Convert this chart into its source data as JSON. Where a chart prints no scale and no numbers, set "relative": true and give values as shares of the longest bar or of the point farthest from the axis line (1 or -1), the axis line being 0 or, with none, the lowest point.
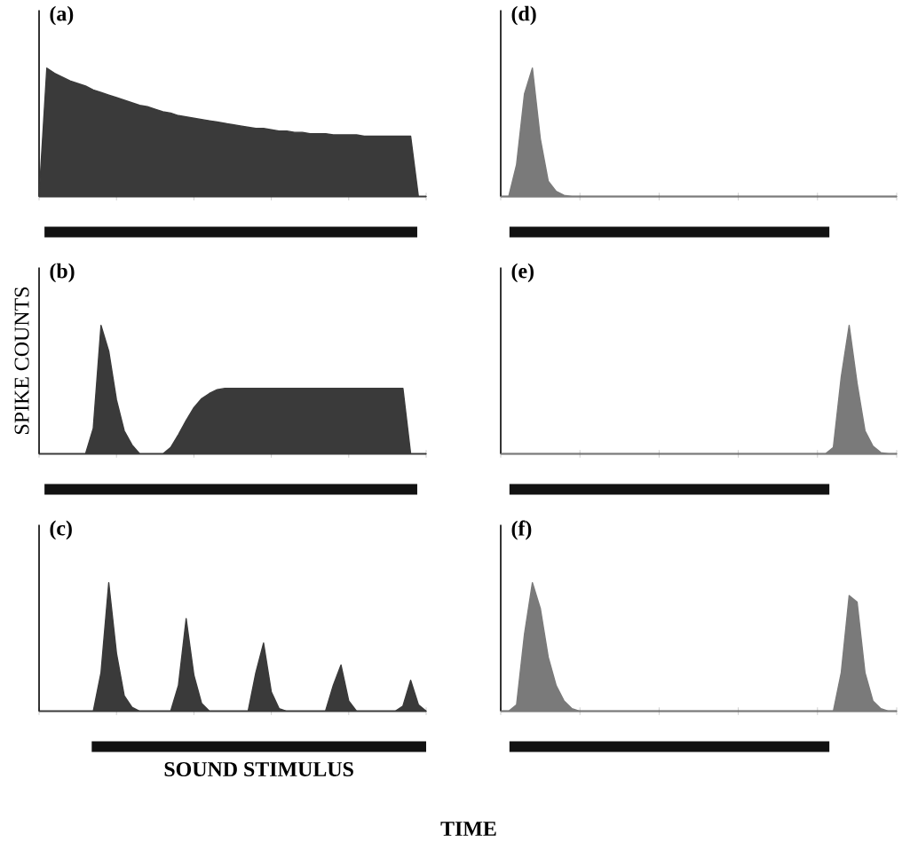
{
  "chart_data": [
    {
      "type": "area",
      "title": "(a)",
      "relative": true,
      "color": "#3a3a3a",
      "categories": [
        null,
        null,
        null,
        null,
        null,
        null,
        null,
        null,
        null,
        null,
        null,
        null,
        null,
        null,
        null,
        null,
        null,
        null,
        null,
        null,
        null,
        null,
        null,
        null,
        null,
        null,
        null,
        null,
        null,
        null,
        null,
        null,
        null,
        null,
        null,
        null,
        null,
        null,
        null,
        null,
        null,
        null,
        null,
        null,
        null,
        null,
        null,
        null,
        null,
        null,
        null
      ],
      "values": [
        0,
        1,
        0.96,
        0.93,
        0.9,
        0.88,
        0.86,
        0.83,
        0.81,
        0.79,
        0.77,
        0.75,
        0.73,
        0.71,
        0.7,
        0.68,
        0.66,
        0.65,
        0.63,
        0.62,
        0.61,
        0.6,
        0.59,
        0.58,
        0.57,
        0.56,
        0.55,
        0.54,
        0.53,
        0.53,
        0.52,
        0.51,
        0.51,
        0.5,
        0.5,
        0.49,
        0.49,
        0.49,
        0.48,
        0.48,
        0.48,
        0.48,
        0.47,
        0.47,
        0.47,
        0.47,
        0.47,
        0.47,
        0.47,
        0,
        0
      ]
    },
    {
      "type": "area",
      "title": "(d)",
      "relative": true,
      "color": "#7a7a7a",
      "categories": [
        null,
        null,
        null,
        null,
        null,
        null,
        null,
        null,
        null,
        null,
        null,
        null,
        null,
        null,
        null,
        null,
        null,
        null,
        null,
        null,
        null,
        null,
        null,
        null,
        null,
        null,
        null,
        null,
        null,
        null,
        null,
        null,
        null,
        null,
        null,
        null,
        null,
        null,
        null,
        null,
        null,
        null,
        null,
        null,
        null,
        null,
        null,
        null,
        null,
        null,
        null
      ],
      "values": [
        0,
        0,
        0.25,
        0.8,
        1,
        0.45,
        0.12,
        0.04,
        0.01,
        0,
        0,
        0,
        0,
        0,
        0,
        0,
        0,
        0,
        0,
        0,
        0,
        0,
        0,
        0,
        0,
        0,
        0,
        0,
        0,
        0,
        0,
        0,
        0,
        0,
        0,
        0,
        0,
        0,
        0,
        0,
        0,
        0,
        0,
        0,
        0,
        0,
        0,
        0,
        0,
        0,
        0
      ]
    },
    {
      "type": "area",
      "title": "(b)",
      "ylabel": "SPIKE COUNTS",
      "relative": true,
      "color": "#3a3a3a",
      "categories": [
        null,
        null,
        null,
        null,
        null,
        null,
        null,
        null,
        null,
        null,
        null,
        null,
        null,
        null,
        null,
        null,
        null,
        null,
        null,
        null,
        null,
        null,
        null,
        null,
        null,
        null,
        null,
        null,
        null,
        null,
        null,
        null,
        null,
        null,
        null,
        null,
        null,
        null,
        null,
        null,
        null,
        null,
        null,
        null,
        null,
        null,
        null,
        null,
        null,
        null,
        null
      ],
      "values": [
        0,
        0,
        0,
        0,
        0,
        0,
        0,
        0.2,
        1,
        0.8,
        0.42,
        0.18,
        0.07,
        0,
        0,
        0,
        0,
        0.05,
        0.15,
        0.26,
        0.36,
        0.43,
        0.47,
        0.5,
        0.51,
        0.51,
        0.51,
        0.51,
        0.51,
        0.51,
        0.51,
        0.51,
        0.51,
        0.51,
        0.51,
        0.51,
        0.51,
        0.51,
        0.51,
        0.51,
        0.51,
        0.51,
        0.51,
        0.51,
        0.51,
        0.51,
        0.51,
        0.51,
        0,
        0,
        0
      ]
    },
    {
      "type": "area",
      "title": "(e)",
      "relative": true,
      "color": "#7a7a7a",
      "categories": [
        null,
        null,
        null,
        null,
        null,
        null,
        null,
        null,
        null,
        null,
        null,
        null,
        null,
        null,
        null,
        null,
        null,
        null,
        null,
        null,
        null,
        null,
        null,
        null,
        null,
        null,
        null,
        null,
        null,
        null,
        null,
        null,
        null,
        null,
        null,
        null,
        null,
        null,
        null,
        null,
        null,
        null,
        null,
        null,
        null,
        null,
        null,
        null,
        null,
        null,
        null
      ],
      "values": [
        0,
        0,
        0,
        0,
        0,
        0,
        0,
        0,
        0,
        0,
        0,
        0,
        0,
        0,
        0,
        0,
        0,
        0,
        0,
        0,
        0,
        0,
        0,
        0,
        0,
        0,
        0,
        0,
        0,
        0,
        0,
        0,
        0,
        0,
        0,
        0,
        0,
        0,
        0,
        0,
        0,
        0,
        0.05,
        0.6,
        1,
        0.55,
        0.18,
        0.06,
        0.01,
        0,
        0
      ]
    },
    {
      "type": "area",
      "title": "(c)",
      "xlabel": "TIME",
      "annotations": [
        "SOUND STIMULUS"
      ],
      "relative": true,
      "color": "#3a3a3a",
      "categories": [
        null,
        null,
        null,
        null,
        null,
        null,
        null,
        null,
        null,
        null,
        null,
        null,
        null,
        null,
        null,
        null,
        null,
        null,
        null,
        null,
        null,
        null,
        null,
        null,
        null,
        null,
        null,
        null,
        null,
        null,
        null,
        null,
        null,
        null,
        null,
        null,
        null,
        null,
        null,
        null,
        null,
        null,
        null,
        null,
        null,
        null,
        null,
        null,
        null,
        null,
        null
      ],
      "values": [
        0,
        0,
        0,
        0,
        0,
        0,
        0,
        0,
        0.3,
        1,
        0.45,
        0.12,
        0.03,
        0,
        0,
        0,
        0,
        0,
        0.2,
        0.72,
        0.28,
        0.06,
        0,
        0,
        0,
        0,
        0,
        0,
        0.3,
        0.53,
        0.15,
        0.02,
        0,
        0,
        0,
        0,
        0,
        0,
        0.2,
        0.36,
        0.08,
        0,
        0,
        0,
        0,
        0,
        0,
        0.04,
        0.24,
        0.05,
        0
      ]
    },
    {
      "type": "area",
      "title": "(f)",
      "relative": true,
      "color": "#7a7a7a",
      "categories": [
        null,
        null,
        null,
        null,
        null,
        null,
        null,
        null,
        null,
        null,
        null,
        null,
        null,
        null,
        null,
        null,
        null,
        null,
        null,
        null,
        null,
        null,
        null,
        null,
        null,
        null,
        null,
        null,
        null,
        null,
        null,
        null,
        null,
        null,
        null,
        null,
        null,
        null,
        null,
        null,
        null,
        null,
        null,
        null,
        null,
        null,
        null,
        null,
        null,
        null,
        null
      ],
      "values": [
        0,
        0,
        0.05,
        0.6,
        1,
        0.8,
        0.42,
        0.2,
        0.08,
        0.02,
        0,
        0,
        0,
        0,
        0,
        0,
        0,
        0,
        0,
        0,
        0,
        0,
        0,
        0,
        0,
        0,
        0,
        0,
        0,
        0,
        0,
        0,
        0,
        0,
        0,
        0,
        0,
        0,
        0,
        0,
        0,
        0,
        0,
        0.3,
        0.9,
        0.85,
        0.3,
        0.08,
        0.02,
        0,
        0
      ]
    }
  ]
}
